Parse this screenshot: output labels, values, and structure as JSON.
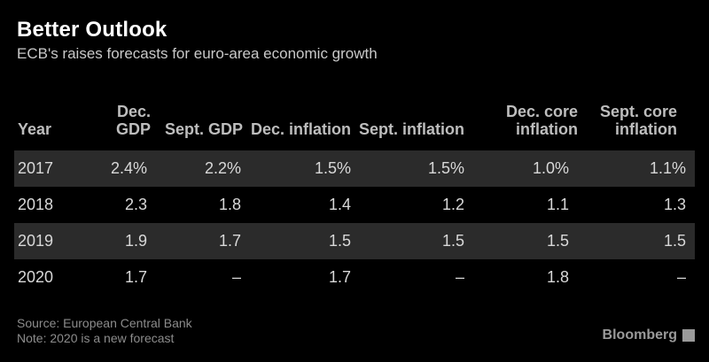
{
  "header": {
    "title": "Better Outlook",
    "subtitle": "ECB's raises forecasts for euro-area economic growth"
  },
  "chart_data": {
    "type": "table",
    "title": "Better Outlook",
    "subtitle": "ECB's raises forecasts for euro-area economic growth",
    "columns": [
      "Year",
      "Dec. GDP",
      "Sept. GDP",
      "Dec. inflation",
      "Sept. inflation",
      "Dec. core inflation",
      "Sept. core inflation"
    ],
    "rows": [
      [
        "2017",
        "2.4%",
        "2.2%",
        "1.5%",
        "1.5%",
        "1.0%",
        "1.1%"
      ],
      [
        "2018",
        "2.3",
        "1.8",
        "1.4",
        "1.2",
        "1.1",
        "1.3"
      ],
      [
        "2019",
        "1.9",
        "1.7",
        "1.5",
        "1.5",
        "1.5",
        "1.5"
      ],
      [
        "2020",
        "1.7",
        "–",
        "1.7",
        "–",
        "1.8",
        "–"
      ]
    ]
  },
  "footer": {
    "source": "Source: European Central Bank",
    "note": "Note: 2020 is a new forecast",
    "brand": "Bloomberg"
  },
  "colors": {
    "background": "#000000",
    "row_shade": "#2b2b2b",
    "header_text": "#bdbdbd",
    "cell_text": "#d8d8d8"
  }
}
